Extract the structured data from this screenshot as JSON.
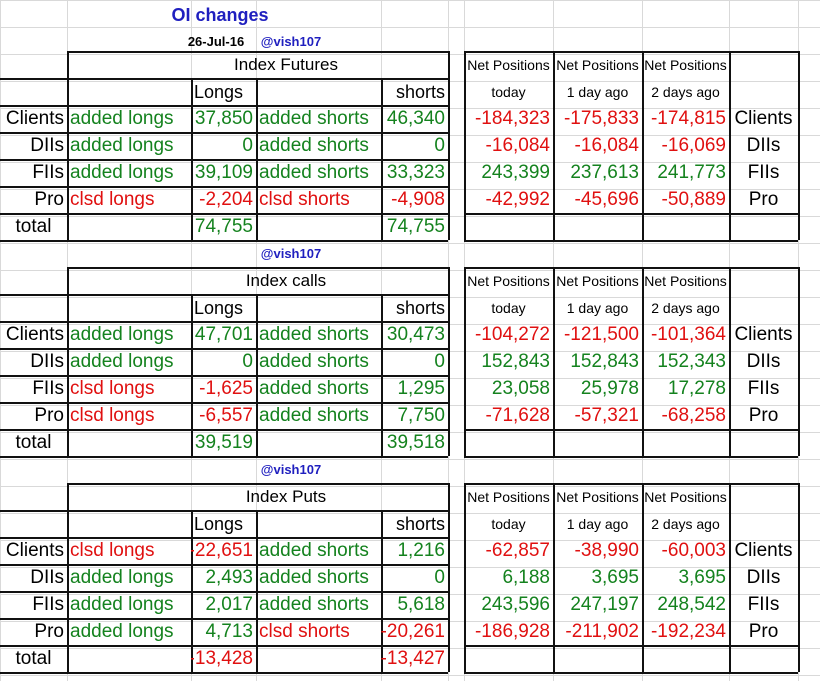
{
  "header": {
    "title": "OI changes",
    "date": "26-Jul-16",
    "handle": "@vish107"
  },
  "columns": {
    "longs": "Longs",
    "shorts": "shorts",
    "net": "Net Positions",
    "today": "today",
    "day1": "1 day ago",
    "day2": "2 days ago",
    "total": "total"
  },
  "colors": {
    "green": "#14821e",
    "red": "#e01010",
    "blue": "#1f1fbf"
  },
  "sections": [
    {
      "title": "Index Futures",
      "handle": "",
      "rows": [
        {
          "label": "Clients",
          "long_desc": "added longs",
          "long_val": "37,850",
          "short_desc": "added shorts",
          "short_val": "46,340",
          "today": "-184,323",
          "day1": "-175,833",
          "day2": "-174,815"
        },
        {
          "label": "DIIs",
          "long_desc": "added longs",
          "long_val": "0",
          "short_desc": "added shorts",
          "short_val": "0",
          "today": "-16,084",
          "day1": "-16,084",
          "day2": "-16,069"
        },
        {
          "label": "FIIs",
          "long_desc": "added longs",
          "long_val": "39,109",
          "short_desc": "added shorts",
          "short_val": "33,323",
          "today": "243,399",
          "day1": "237,613",
          "day2": "241,773"
        },
        {
          "label": "Pro",
          "long_desc": "clsd longs",
          "long_val": "-2,204",
          "short_desc": "clsd shorts",
          "short_val": "-4,908",
          "today": "-42,992",
          "day1": "-45,696",
          "day2": "-50,889"
        }
      ],
      "total_long": "74,755",
      "total_short": "74,755"
    },
    {
      "title": "Index calls",
      "handle": "@vish107",
      "rows": [
        {
          "label": "Clients",
          "long_desc": "added longs",
          "long_val": "47,701",
          "short_desc": "added shorts",
          "short_val": "30,473",
          "today": "-104,272",
          "day1": "-121,500",
          "day2": "-101,364"
        },
        {
          "label": "DIIs",
          "long_desc": "added longs",
          "long_val": "0",
          "short_desc": "added shorts",
          "short_val": "0",
          "today": "152,843",
          "day1": "152,843",
          "day2": "152,343"
        },
        {
          "label": "FIIs",
          "long_desc": "clsd longs",
          "long_val": "-1,625",
          "short_desc": "added shorts",
          "short_val": "1,295",
          "today": "23,058",
          "day1": "25,978",
          "day2": "17,278"
        },
        {
          "label": "Pro",
          "long_desc": "clsd longs",
          "long_val": "-6,557",
          "short_desc": "added shorts",
          "short_val": "7,750",
          "today": "-71,628",
          "day1": "-57,321",
          "day2": "-68,258"
        }
      ],
      "total_long": "39,519",
      "total_short": "39,518"
    },
    {
      "title": "Index Puts",
      "handle": "@vish107",
      "rows": [
        {
          "label": "Clients",
          "long_desc": "clsd longs",
          "long_val": "-22,651",
          "short_desc": "added shorts",
          "short_val": "1,216",
          "today": "-62,857",
          "day1": "-38,990",
          "day2": "-60,003"
        },
        {
          "label": "DIIs",
          "long_desc": "added longs",
          "long_val": "2,493",
          "short_desc": "added shorts",
          "short_val": "0",
          "today": "6,188",
          "day1": "3,695",
          "day2": "3,695"
        },
        {
          "label": "FIIs",
          "long_desc": "added longs",
          "long_val": "2,017",
          "short_desc": "added shorts",
          "short_val": "5,618",
          "today": "243,596",
          "day1": "247,197",
          "day2": "248,542"
        },
        {
          "label": "Pro",
          "long_desc": "added longs",
          "long_val": "4,713",
          "short_desc": "clsd shorts",
          "short_val": "-20,261",
          "today": "-186,928",
          "day1": "-211,902",
          "day2": "-192,234"
        }
      ],
      "total_long": "-13,428",
      "total_short": "-13,427"
    }
  ]
}
